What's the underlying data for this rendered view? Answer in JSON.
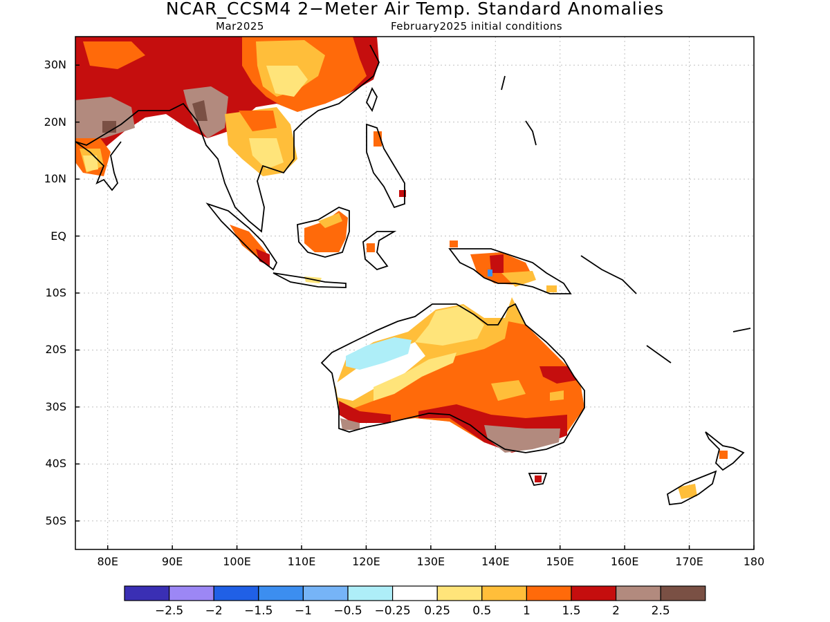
{
  "title": "NCAR_CCSM4 2−Meter Air Temp. Standard Anomalies",
  "subtitle_left": "Mar2025",
  "subtitle_right": "February2025 initial conditions",
  "lat_labels": [
    {
      "lat": 30,
      "label": "30N"
    },
    {
      "lat": 20,
      "label": "20N"
    },
    {
      "lat": 10,
      "label": "10N"
    },
    {
      "lat": 0,
      "label": "EQ"
    },
    {
      "lat": -10,
      "label": "10S"
    },
    {
      "lat": -20,
      "label": "20S"
    },
    {
      "lat": -30,
      "label": "30S"
    },
    {
      "lat": -40,
      "label": "40S"
    },
    {
      "lat": -50,
      "label": "50S"
    }
  ],
  "lon_labels": [
    {
      "lon": 80,
      "label": "80E"
    },
    {
      "lon": 90,
      "label": "90E"
    },
    {
      "lon": 100,
      "label": "100E"
    },
    {
      "lon": 110,
      "label": "110E"
    },
    {
      "lon": 120,
      "label": "120E"
    },
    {
      "lon": 130,
      "label": "130E"
    },
    {
      "lon": 140,
      "label": "140E"
    },
    {
      "lon": 150,
      "label": "150E"
    },
    {
      "lon": 160,
      "label": "160E"
    },
    {
      "lon": 170,
      "label": "170E"
    },
    {
      "lon": 180,
      "label": "180"
    }
  ],
  "map_extent": {
    "lon_min": 75,
    "lon_max": 180,
    "lat_min": -55,
    "lat_max": 35
  },
  "colorbar": {
    "colors": [
      "#3a2fb4",
      "#9c87f5",
      "#2060e6",
      "#3c8ef0",
      "#76b4f7",
      "#aeeef8",
      "#ffffff",
      "#ffe47a",
      "#ffbe3a",
      "#ff6a0a",
      "#c50e0e",
      "#b28a7e",
      "#7a5044"
    ],
    "labels": [
      "−2.5",
      "−2",
      "−1.5",
      "−1",
      "−0.5",
      "−0.25",
      "0.25",
      "0.5",
      "1",
      "1.5",
      "2",
      "2.5"
    ]
  }
}
